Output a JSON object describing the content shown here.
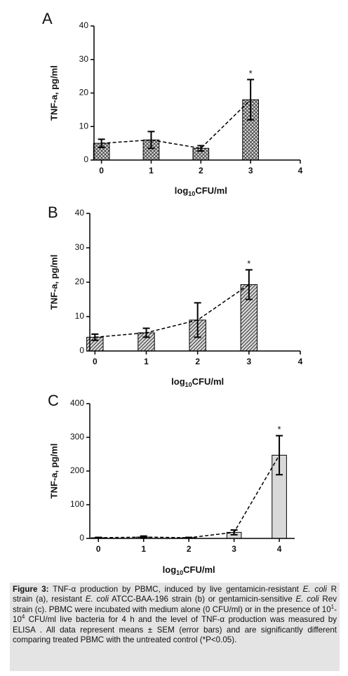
{
  "charts": [
    {
      "chart_data": {
        "type": "bar",
        "panel": "A",
        "ylabel": "TNF-a, pg/ml",
        "xlabel": [
          "log",
          "10",
          "CFU/ml"
        ],
        "x": [
          0,
          1,
          2,
          3
        ],
        "values": [
          5,
          6,
          3.5,
          18
        ],
        "errors": [
          1.2,
          2.5,
          0.8,
          6
        ],
        "xlim": [
          -0.15,
          4
        ],
        "xticks": [
          0,
          1,
          2,
          3,
          4
        ],
        "ylim": [
          0,
          40
        ],
        "yticks": [
          0,
          10,
          20,
          30,
          40
        ],
        "pattern": "crosshatch",
        "color": "#d9d9d9",
        "trend_line": "dashed",
        "annotations": [
          {
            "x": 3,
            "text": "*"
          }
        ]
      }
    },
    {
      "chart_data": {
        "type": "bar",
        "panel": "B",
        "ylabel": "TNF-a, pg/ml",
        "xlabel": [
          "log",
          "10",
          "CFU/ml"
        ],
        "x": [
          0,
          1,
          2,
          3
        ],
        "values": [
          4,
          5.3,
          9,
          19.3
        ],
        "errors": [
          0.9,
          1.3,
          5,
          4.3
        ],
        "xlim": [
          -0.1,
          4
        ],
        "xticks": [
          0,
          1,
          2,
          3,
          4
        ],
        "ylim": [
          0,
          40
        ],
        "yticks": [
          0,
          10,
          20,
          30,
          40
        ],
        "pattern": "diagonal",
        "color": "#d9d9d9",
        "trend_line": "dashed",
        "annotations": [
          {
            "x": 3,
            "text": "*"
          }
        ]
      }
    },
    {
      "chart_data": {
        "type": "bar",
        "panel": "C",
        "ylabel": "TNF-a, pg/ml",
        "xlabel": [
          "log",
          "10",
          "CFU/ml"
        ],
        "x": [
          0,
          1,
          2,
          3,
          4
        ],
        "values": [
          2,
          4,
          2,
          18,
          247
        ],
        "errors": [
          1,
          3,
          1,
          7,
          58
        ],
        "xlim": [
          -0.19,
          4.34
        ],
        "xticks": [
          0,
          1,
          2,
          3,
          4
        ],
        "ylim": [
          0,
          400
        ],
        "yticks": [
          0,
          100,
          200,
          300,
          400
        ],
        "pattern": "none",
        "color": "#d9d9d9",
        "trend_line": "dashed",
        "annotations": [
          {
            "x": 4,
            "text": "*"
          }
        ]
      }
    }
  ],
  "caption": {
    "label": "Figure 3:",
    "runs": [
      " TNF-α production by PBMC, induced by live gentamicin-resistant ",
      {
        "text": "E. coli",
        "style": "italic"
      },
      " R strain (a), resistant ",
      {
        "text": "E. coli",
        "style": "italic"
      },
      " ATCC-BAA-196 strain (b) or gentamicin-sensitive ",
      {
        "text": "E. coli",
        "style": "italic"
      },
      " Rev strain (c).  PBMC were incubated with medium alone (0 CFU/ml) or in the presence of 10",
      {
        "text": "1",
        "style": "sup"
      },
      "-10",
      {
        "text": "4",
        "style": "sup"
      },
      " CFU/ml live bacteria for 4 h and the level of TNF-α production was measured by ELISA . All data represent means ± SEM (error bars) and are significantly different comparing treated PBMC with the untreated control (*P<0.05)."
    ]
  }
}
